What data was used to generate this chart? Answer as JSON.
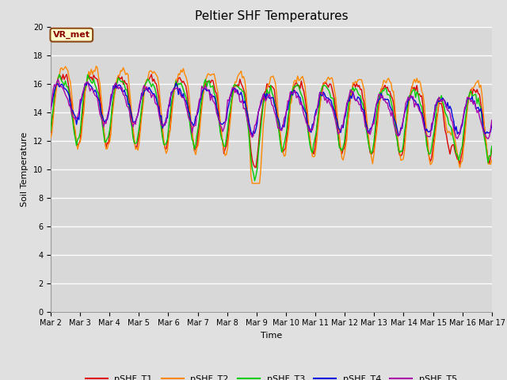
{
  "title": "Peltier SHF Temperatures",
  "xlabel": "Time",
  "ylabel": "Soil Temperature",
  "ylim": [
    0,
    20
  ],
  "yticks": [
    0,
    2,
    4,
    6,
    8,
    10,
    12,
    14,
    16,
    18,
    20
  ],
  "background_color": "#e0e0e0",
  "plot_bg_color": "#d8d8d8",
  "grid_color": "#ffffff",
  "vr_met_label": "VR_met",
  "vr_met_bg": "#ffffcc",
  "vr_met_border": "#8b4513",
  "vr_met_text": "#8b0000",
  "series_colors": {
    "pSHF_T1": "#dd0000",
    "pSHF_T2": "#ff8800",
    "pSHF_T3": "#00cc00",
    "pSHF_T4": "#0000dd",
    "pSHF_T5": "#aa00aa"
  },
  "xtick_labels": [
    "Mar 2",
    "Mar 3",
    "Mar 4",
    "Mar 5",
    "Mar 6",
    "Mar 7",
    "Mar 8",
    "Mar 9",
    "Mar 10",
    "Mar 11",
    "Mar 12",
    "Mar 13",
    "Mar 14",
    "Mar 15",
    "Mar 16",
    "Mar 17"
  ],
  "legend_entries": [
    "pSHF_T1",
    "pSHF_T2",
    "pSHF_T3",
    "pSHF_T4",
    "pSHF_T5"
  ]
}
